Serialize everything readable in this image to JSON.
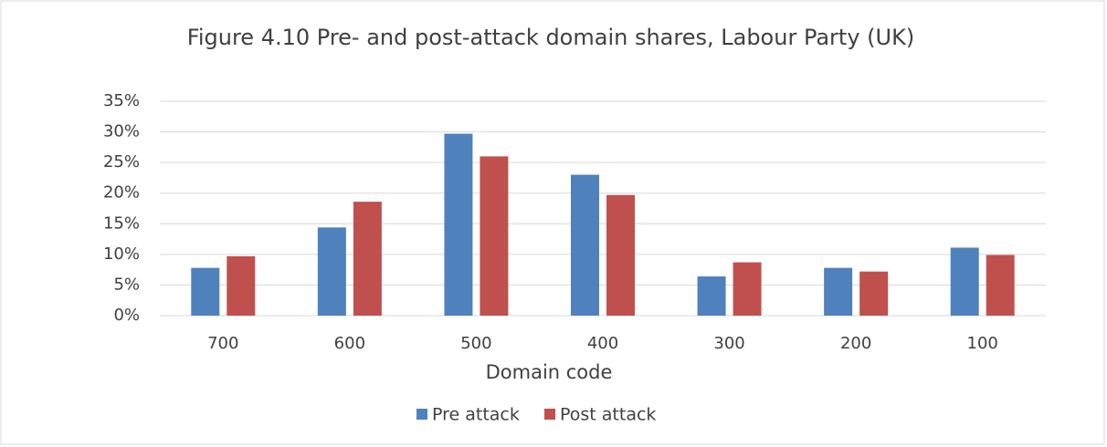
{
  "chart_data": {
    "type": "bar",
    "title": "Figure 4.10 Pre- and post-attack domain shares, Labour Party (UK)",
    "x_label": "Domain code",
    "categories": [
      "700",
      "600",
      "500",
      "400",
      "300",
      "200",
      "100"
    ],
    "series": [
      {
        "name": "Pre attack",
        "color": "#4f81bd",
        "values": [
          7.8,
          14.4,
          29.7,
          23.0,
          6.4,
          7.8,
          11.1
        ]
      },
      {
        "name": "Post attack",
        "color": "#c0504d",
        "values": [
          9.7,
          18.6,
          26.0,
          19.7,
          8.7,
          7.2,
          9.9
        ]
      }
    ],
    "ylim": [
      0,
      35
    ],
    "yticks": [
      {
        "value": 0,
        "label": "0%"
      },
      {
        "value": 5,
        "label": "5%"
      },
      {
        "value": 10,
        "label": "10%"
      },
      {
        "value": 15,
        "label": "15%"
      },
      {
        "value": 20,
        "label": "20%"
      },
      {
        "value": 25,
        "label": "25%"
      },
      {
        "value": 30,
        "label": "30%"
      },
      {
        "value": 35,
        "label": "35%"
      }
    ],
    "grid": true,
    "legend": "bottom"
  }
}
